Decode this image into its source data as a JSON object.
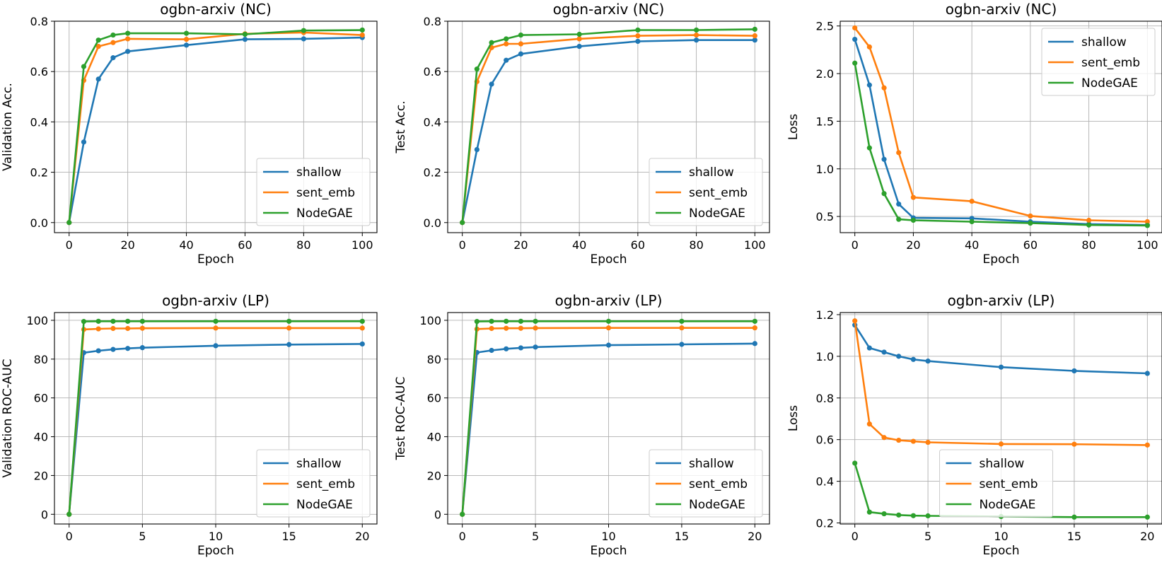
{
  "colors": {
    "shallow": "#1f77b4",
    "sent_emb": "#ff7f0e",
    "NodeGAE": "#2ca02c",
    "grid": "#b0b0b0"
  },
  "chart_data": [
    {
      "type": "line",
      "title": "ogbn-arxiv (NC)",
      "xlabel": "Epoch",
      "ylabel": "Validation Acc.",
      "xlim": [
        -5,
        105
      ],
      "ylim": [
        -0.04,
        0.8
      ],
      "xticks": [
        0,
        20,
        40,
        60,
        80,
        100
      ],
      "yticks": [
        0.0,
        0.2,
        0.4,
        0.6,
        0.8
      ],
      "ytick_labels": [
        "0.0",
        "0.2",
        "0.4",
        "0.6",
        "0.8"
      ],
      "grid": true,
      "legend": "lower right",
      "x": [
        0,
        5,
        10,
        15,
        20,
        40,
        60,
        80,
        100
      ],
      "series": [
        {
          "name": "shallow",
          "values": [
            0.0,
            0.32,
            0.57,
            0.655,
            0.68,
            0.705,
            0.728,
            0.73,
            0.735
          ]
        },
        {
          "name": "sent_emb",
          "values": [
            0.0,
            0.565,
            0.7,
            0.715,
            0.73,
            0.728,
            0.75,
            0.755,
            0.745
          ]
        },
        {
          "name": "NodeGAE",
          "values": [
            0.0,
            0.62,
            0.725,
            0.745,
            0.752,
            0.752,
            0.748,
            0.763,
            0.765
          ]
        }
      ]
    },
    {
      "type": "line",
      "title": "ogbn-arxiv (NC)",
      "xlabel": "Epoch",
      "ylabel": "Test Acc.",
      "xlim": [
        -5,
        105
      ],
      "ylim": [
        -0.04,
        0.8
      ],
      "xticks": [
        0,
        20,
        40,
        60,
        80,
        100
      ],
      "yticks": [
        0.0,
        0.2,
        0.4,
        0.6,
        0.8
      ],
      "ytick_labels": [
        "0.0",
        "0.2",
        "0.4",
        "0.6",
        "0.8"
      ],
      "grid": true,
      "legend": "lower right",
      "x": [
        0,
        5,
        10,
        15,
        20,
        40,
        60,
        80,
        100
      ],
      "series": [
        {
          "name": "shallow",
          "values": [
            0.0,
            0.29,
            0.55,
            0.645,
            0.67,
            0.7,
            0.72,
            0.725,
            0.725
          ]
        },
        {
          "name": "sent_emb",
          "values": [
            0.0,
            0.56,
            0.695,
            0.71,
            0.71,
            0.73,
            0.742,
            0.745,
            0.742
          ]
        },
        {
          "name": "NodeGAE",
          "values": [
            0.0,
            0.61,
            0.715,
            0.73,
            0.745,
            0.748,
            0.765,
            0.765,
            0.768
          ]
        }
      ]
    },
    {
      "type": "line",
      "title": "ogbn-arxiv (NC)",
      "xlabel": "Epoch",
      "ylabel": "Loss",
      "xlim": [
        -5,
        105
      ],
      "ylim": [
        0.33,
        2.55
      ],
      "xticks": [
        0,
        20,
        40,
        60,
        80,
        100
      ],
      "yticks": [
        0.5,
        1.0,
        1.5,
        2.0,
        2.5
      ],
      "ytick_labels": [
        "0.5",
        "1.0",
        "1.5",
        "2.0",
        "2.5"
      ],
      "grid": true,
      "legend": "upper right",
      "x": [
        0,
        5,
        10,
        15,
        20,
        40,
        60,
        80,
        100
      ],
      "series": [
        {
          "name": "shallow",
          "values": [
            2.36,
            1.88,
            1.1,
            0.63,
            0.485,
            0.48,
            0.445,
            0.42,
            0.41
          ]
        },
        {
          "name": "sent_emb",
          "values": [
            2.48,
            2.28,
            1.85,
            1.17,
            0.7,
            0.66,
            0.505,
            0.46,
            0.445
          ]
        },
        {
          "name": "NodeGAE",
          "values": [
            2.11,
            1.22,
            0.74,
            0.47,
            0.46,
            0.445,
            0.43,
            0.41,
            0.405
          ]
        }
      ]
    },
    {
      "type": "line",
      "title": "ogbn-arxiv (LP)",
      "xlabel": "Epoch",
      "ylabel": "Validation ROC-AUC",
      "xlim": [
        -1,
        21
      ],
      "ylim": [
        -5,
        104
      ],
      "xticks": [
        0,
        5,
        10,
        15,
        20
      ],
      "yticks": [
        0,
        20,
        40,
        60,
        80,
        100
      ],
      "ytick_labels": [
        "0",
        "20",
        "40",
        "60",
        "80",
        "100"
      ],
      "grid": true,
      "legend": "lower right",
      "x": [
        0,
        1,
        2,
        3,
        4,
        5,
        10,
        15,
        20
      ],
      "series": [
        {
          "name": "shallow",
          "values": [
            0,
            83.3,
            84.3,
            85.0,
            85.5,
            85.9,
            86.9,
            87.5,
            87.8
          ]
        },
        {
          "name": "sent_emb",
          "values": [
            0,
            95.3,
            95.6,
            95.8,
            95.8,
            95.9,
            96.0,
            96.0,
            96.0
          ]
        },
        {
          "name": "NodeGAE",
          "values": [
            0,
            99.4,
            99.5,
            99.5,
            99.5,
            99.5,
            99.5,
            99.5,
            99.5
          ]
        }
      ]
    },
    {
      "type": "line",
      "title": "ogbn-arxiv (LP)",
      "xlabel": "Epoch",
      "ylabel": "Test ROC-AUC",
      "xlim": [
        -1,
        21
      ],
      "ylim": [
        -5,
        104
      ],
      "xticks": [
        0,
        5,
        10,
        15,
        20
      ],
      "yticks": [
        0,
        20,
        40,
        60,
        80,
        100
      ],
      "ytick_labels": [
        "0",
        "20",
        "40",
        "60",
        "80",
        "100"
      ],
      "grid": true,
      "legend": "lower right",
      "x": [
        0,
        1,
        2,
        3,
        4,
        5,
        10,
        15,
        20
      ],
      "series": [
        {
          "name": "shallow",
          "values": [
            0,
            83.4,
            84.5,
            85.3,
            85.8,
            86.2,
            87.2,
            87.6,
            88.0
          ]
        },
        {
          "name": "sent_emb",
          "values": [
            0,
            95.5,
            95.8,
            95.9,
            95.9,
            96.0,
            96.1,
            96.1,
            96.1
          ]
        },
        {
          "name": "NodeGAE",
          "values": [
            0,
            99.4,
            99.5,
            99.5,
            99.5,
            99.5,
            99.5,
            99.5,
            99.5
          ]
        }
      ]
    },
    {
      "type": "line",
      "title": "ogbn-arxiv (LP)",
      "xlabel": "Epoch",
      "ylabel": "Loss",
      "xlim": [
        -1,
        21
      ],
      "ylim": [
        0.195,
        1.21
      ],
      "xticks": [
        0,
        5,
        10,
        15,
        20
      ],
      "yticks": [
        0.2,
        0.4,
        0.6,
        0.8,
        1.0,
        1.2
      ],
      "ytick_labels": [
        "0.2",
        "0.4",
        "0.6",
        "0.8",
        "1.0",
        "1.2"
      ],
      "grid": true,
      "legend": "lower center",
      "x": [
        0,
        1,
        2,
        3,
        4,
        5,
        10,
        15,
        20
      ],
      "series": [
        {
          "name": "shallow",
          "values": [
            1.15,
            1.04,
            1.02,
            1.0,
            0.985,
            0.977,
            0.948,
            0.93,
            0.918
          ]
        },
        {
          "name": "sent_emb",
          "values": [
            1.17,
            0.675,
            0.61,
            0.597,
            0.592,
            0.587,
            0.579,
            0.578,
            0.574
          ]
        },
        {
          "name": "NodeGAE",
          "values": [
            0.487,
            0.252,
            0.244,
            0.238,
            0.235,
            0.234,
            0.231,
            0.228,
            0.228
          ]
        }
      ]
    }
  ]
}
